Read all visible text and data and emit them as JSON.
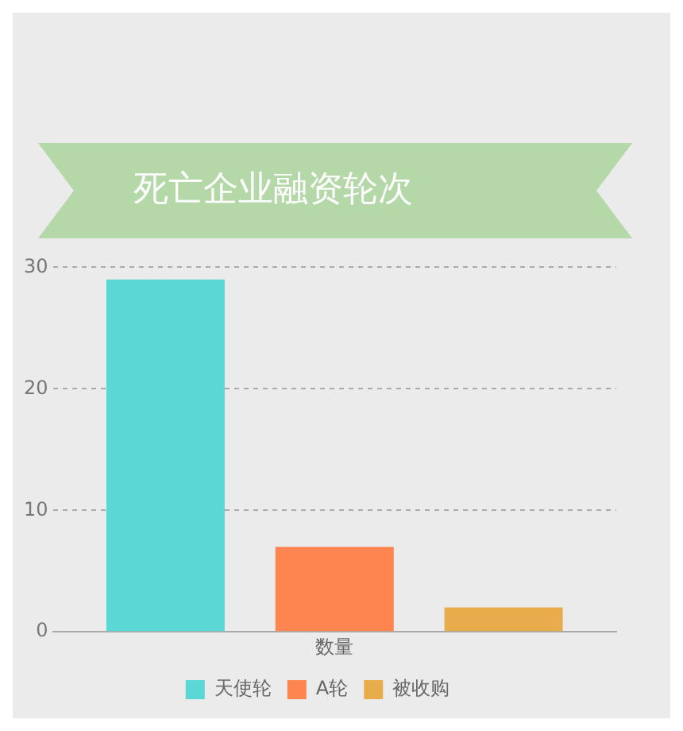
{
  "chart_data": {
    "type": "bar",
    "title": "死亡企业融资轮次",
    "xlabel": null,
    "categories": [
      "数量"
    ],
    "series": [
      {
        "name": "天使轮",
        "color": "#5bd8d6",
        "values": [
          29
        ]
      },
      {
        "name": "A轮",
        "color": "#ff8550",
        "values": [
          7
        ]
      },
      {
        "name": "被收购",
        "color": "#e8ac4c",
        "values": [
          2
        ]
      }
    ],
    "ylim": [
      0,
      30
    ],
    "yticks": [
      0,
      10,
      20,
      30
    ],
    "grid": "y",
    "legend": "bottom"
  }
}
